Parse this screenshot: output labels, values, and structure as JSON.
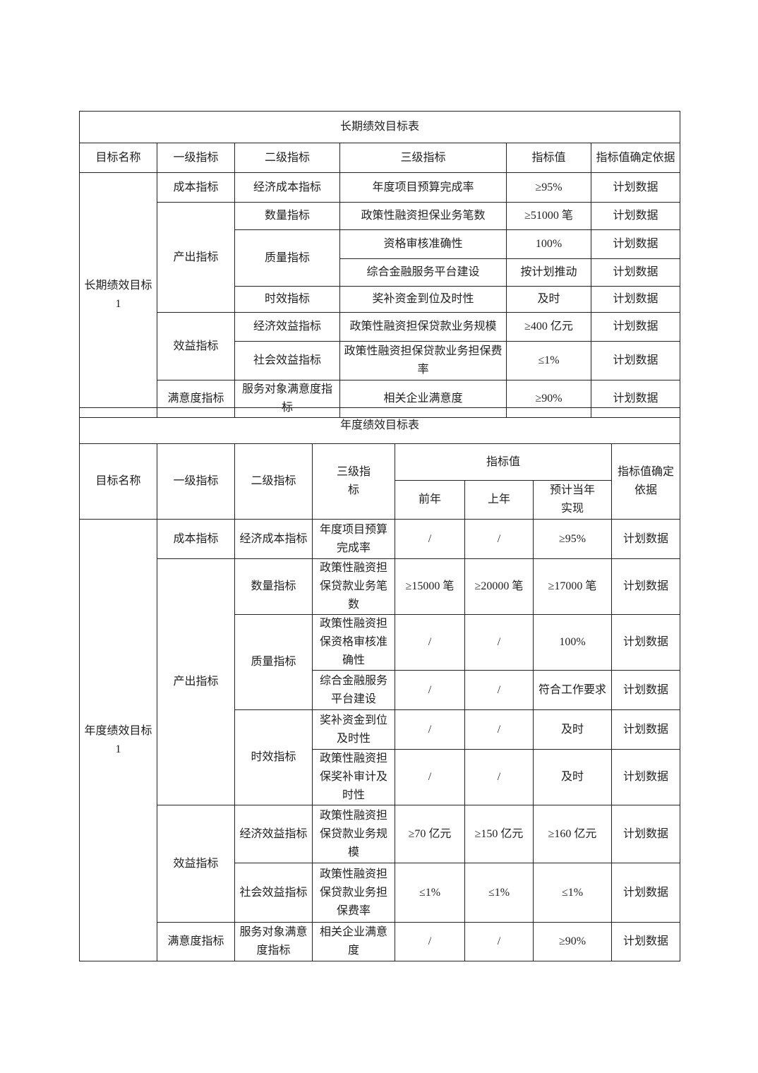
{
  "long_term": {
    "title": "长期绩效目标表",
    "headers": [
      "目标名称",
      "一级指标",
      "二级指标",
      "三级指标",
      "指标值",
      "指标值确定依据"
    ],
    "goal": "长期绩效目标1",
    "level1": [
      "成本指标",
      "产出指标",
      "效益指标",
      "满意度指标"
    ],
    "rows": [
      {
        "l2": "经济成本指标",
        "l3": "年度项目预算完成率",
        "value": "≥95%",
        "basis": "计划数据"
      },
      {
        "l2": "数量指标",
        "l3": "政策性融资担保业务笔数",
        "value": "≥51000 笔",
        "basis": "计划数据"
      },
      {
        "l2": "质量指标",
        "l3": "资格审核准确性",
        "value": "100%",
        "basis": "计划数据"
      },
      {
        "l2": "",
        "l3": "综合金融服务平台建设",
        "value": "按计划推动",
        "basis": "计划数据"
      },
      {
        "l2": "时效指标",
        "l3": "奖补资金到位及时性",
        "value": "及时",
        "basis": "计划数据"
      },
      {
        "l2": "经济效益指标",
        "l3": "政策性融资担保贷款业务规模",
        "value": "≥400 亿元",
        "basis": "计划数据"
      },
      {
        "l2": "社会效益指标",
        "l3": "政策性融资担保贷款业务担保费率",
        "value": "≤1%",
        "basis": "计划数据"
      },
      {
        "l2": "服务对象满意度指标",
        "l3": "相关企业满意度",
        "value": "≥90%",
        "basis": "计划数据"
      }
    ]
  },
  "annual": {
    "title": "年度绩效目标表",
    "headers": {
      "name": "目标名称",
      "l1": "一级指标",
      "l2": "二级指标",
      "l3": "三级指标",
      "value": "指标值",
      "prev2": "前年",
      "prev1": "上年",
      "current": "预计当年实现",
      "basis": "指标值确定依据"
    },
    "goal": "年度绩效目标1",
    "level1": [
      "成本指标",
      "产出指标",
      "效益指标",
      "满意度指标"
    ],
    "level2": [
      "经济成本指标",
      "数量指标",
      "质量指标",
      "时效指标",
      "经济效益指标",
      "社会效益指标",
      "服务对象满意度指标"
    ],
    "rows": [
      {
        "l3": "年度项目预算完成率",
        "prev2": "/",
        "prev1": "/",
        "current": "≥95%",
        "basis": "计划数据"
      },
      {
        "l3": "政策性融资担保贷款业务笔数",
        "prev2": "≥15000 笔",
        "prev1": "≥20000 笔",
        "current": "≥17000 笔",
        "basis": "计划数据"
      },
      {
        "l3": "政策性融资担保资格审核准确性",
        "prev2": "/",
        "prev1": "/",
        "current": "100%",
        "basis": "计划数据"
      },
      {
        "l3": "综合金融服务平台建设",
        "prev2": "/",
        "prev1": "/",
        "current": "符合工作要求",
        "basis": "计划数据"
      },
      {
        "l3": "奖补资金到位及时性",
        "prev2": "/",
        "prev1": "/",
        "current": "及时",
        "basis": "计划数据"
      },
      {
        "l3": "政策性融资担保奖补审计及时性",
        "prev2": "/",
        "prev1": "/",
        "current": "及时",
        "basis": "计划数据"
      },
      {
        "l3": "政策性融资担保贷款业务规模",
        "prev2": "≥70 亿元",
        "prev1": "≥150 亿元",
        "current": "≥160 亿元",
        "basis": "计划数据"
      },
      {
        "l3": "政策性融资担保贷款业务担保费率",
        "prev2": "≤1%",
        "prev1": "≤1%",
        "current": "≤1%",
        "basis": "计划数据"
      },
      {
        "l3": "相关企业满意度",
        "prev2": "/",
        "prev1": "/",
        "current": "≥90%",
        "basis": "计划数据"
      }
    ]
  }
}
